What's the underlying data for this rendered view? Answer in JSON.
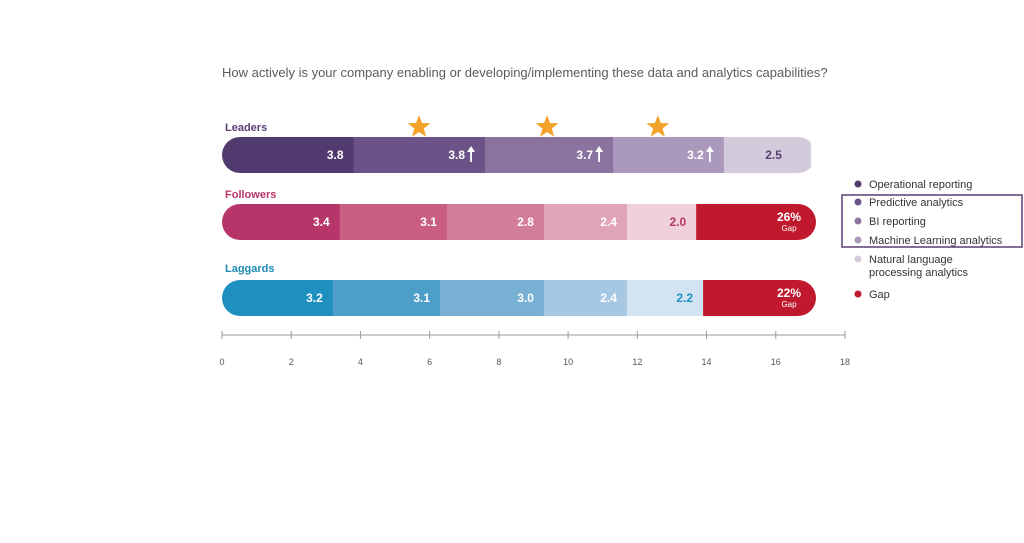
{
  "chart_data": {
    "type": "bar",
    "orientation": "horizontal",
    "stacked": true,
    "title": "How actively is your company enabling or developing/implementing these data and analytics capabilities?",
    "xlim": [
      0,
      18
    ],
    "xticks": [
      "0",
      "2",
      "4",
      "6",
      "8",
      "10",
      "12",
      "14",
      "16",
      "18"
    ],
    "segments": [
      "Operational reporting",
      "Predictive analytics",
      "BI reporting",
      "Machine Learning analytics",
      "Natural language processing analytics",
      "Gap"
    ],
    "groups": [
      {
        "name": "Leaders",
        "name_color": "#5a3f75",
        "values": [
          3.8,
          3.8,
          3.7,
          3.2,
          2.5
        ],
        "labels": [
          "3.8",
          "3.8",
          "3.7",
          "3.2",
          "2.5"
        ],
        "colors": [
          "#513a6e",
          "#6b5387",
          "#8a739f",
          "#aa99bc",
          "#d3cbdc"
        ],
        "label_colors": [
          "#ffffff",
          "#ffffff",
          "#ffffff",
          "#ffffff",
          "#5a3f75"
        ],
        "up_arrow": [
          false,
          true,
          true,
          true,
          false
        ],
        "star": [
          false,
          true,
          true,
          true,
          false
        ],
        "gap": null
      },
      {
        "name": "Followers",
        "name_color": "#b8356a",
        "values": [
          3.4,
          3.1,
          2.8,
          2.4,
          2.0
        ],
        "labels": [
          "3.4",
          "3.1",
          "2.8",
          "2.4",
          "2.0"
        ],
        "colors": [
          "#b6366a",
          "#c85f83",
          "#d37d98",
          "#e0a4b7",
          "#f0d0d9"
        ],
        "label_colors": [
          "#ffffff",
          "#ffffff",
          "#ffffff",
          "#ffffff",
          "#b6366a"
        ],
        "up_arrow": [
          false,
          false,
          false,
          false,
          false
        ],
        "star": [
          false,
          false,
          false,
          false,
          false
        ],
        "gap": {
          "value": "26%",
          "sublabel": "Gap",
          "color": "#c0192d"
        }
      },
      {
        "name": "Laggards",
        "name_color": "#1e8ab5",
        "values": [
          3.2,
          3.1,
          3.0,
          2.4,
          2.2
        ],
        "labels": [
          "3.2",
          "3.1",
          "3.0",
          "2.4",
          "2.2"
        ],
        "colors": [
          "#1f8fbf",
          "#4d9fca",
          "#78b1d4",
          "#a6c8e3",
          "#d2e3f1"
        ],
        "label_colors": [
          "#ffffff",
          "#ffffff",
          "#ffffff",
          "#ffffff",
          "#1f8fbf"
        ],
        "up_arrow": [
          false,
          false,
          false,
          false,
          false
        ],
        "star": [
          false,
          false,
          false,
          false,
          false
        ],
        "gap": {
          "value": "22%",
          "sublabel": "Gap",
          "color": "#c0192d"
        }
      }
    ],
    "legend": {
      "placement": "right",
      "items": [
        {
          "label": "Operational reporting",
          "color": "#513a6e"
        },
        {
          "label": "Predictive analytics",
          "color": "#6b5387"
        },
        {
          "label": "BI reporting",
          "color": "#8a739f"
        },
        {
          "label": "Machine Learning analytics",
          "color": "#aa99bc"
        },
        {
          "label": "Natural language processing analytics",
          "color": "#d3cbdc"
        },
        {
          "label": "Gap",
          "color": "#c0192d"
        }
      ],
      "highlighted": [
        "Predictive analytics",
        "BI reporting",
        "Machine Learning analytics"
      ],
      "highlight_color": "#5a3f75"
    },
    "star_color": "#f3a22c",
    "axis_color": "#9a9a9a",
    "title_color": "#5b5b5b"
  }
}
